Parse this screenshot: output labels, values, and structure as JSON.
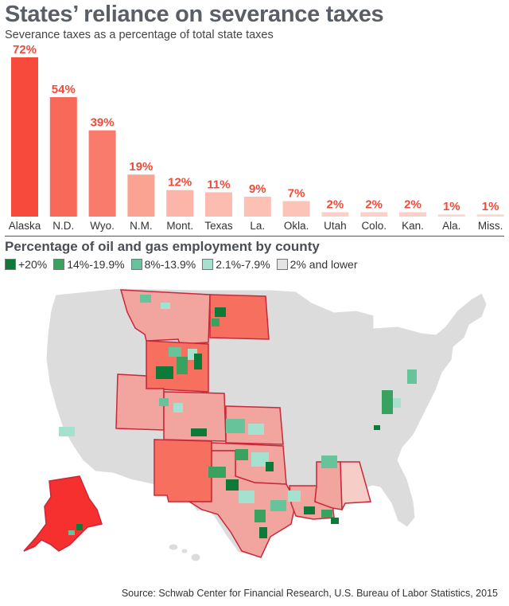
{
  "header": {
    "title": "States’ reliance on severance taxes",
    "subtitle": "Severance taxes as a percentage of total state taxes"
  },
  "chart_data": [
    {
      "type": "bar",
      "title": "States’ reliance on severance taxes",
      "subtitle": "Severance taxes as a percentage of total state taxes",
      "categories": [
        "Alaska",
        "N.D.",
        "Wyo.",
        "N.M.",
        "Mont.",
        "Texas",
        "La.",
        "Okla.",
        "Utah",
        "Colo.",
        "Kan.",
        "Ala.",
        "Miss."
      ],
      "values": [
        72,
        54,
        39,
        19,
        12,
        11,
        9,
        7,
        2,
        2,
        2,
        1,
        1
      ],
      "data_labels": [
        "72%",
        "54%",
        "39%",
        "19%",
        "12%",
        "11%",
        "9%",
        "7%",
        "2%",
        "2%",
        "2%",
        "1%",
        "1%"
      ],
      "ylim": [
        0,
        72
      ],
      "grid": false,
      "colors": {
        "bar_fills": [
          "#f84a3c",
          "#f8695a",
          "#f97b6c",
          "#fba393",
          "#fcb5a8",
          "#fcbcb0",
          "#fcc0b5",
          "#fcc4b9",
          "#fdcfc6",
          "#fdd0c7",
          "#fdd0c7",
          "#fdd6ce",
          "#fdd6ce"
        ],
        "label": "#ef4b3a"
      }
    },
    {
      "type": "map",
      "title": "Percentage of oil and gas employment by county",
      "legend": [
        {
          "label": "+20%",
          "color": "#0d7a39"
        },
        {
          "label": "14%-19.9%",
          "color": "#38a25e"
        },
        {
          "label": "8%-13.9%",
          "color": "#66c39a"
        },
        {
          "label": "2.1%-7.9%",
          "color": "#a6e0cf"
        },
        {
          "label": "2% and lower",
          "color": "#e4e4e4"
        }
      ],
      "colors": {
        "base_land": "#dcdcdc",
        "highlight_state": "#f2a59f",
        "highlight_state_strong": "#f7705f",
        "alaska": "#f62f2f",
        "state_border": "#c8283a"
      }
    }
  ],
  "footer": {
    "source": "Source: Schwab Center for Financial Research,  U.S. Bureau of Labor Statistics, 2015"
  }
}
